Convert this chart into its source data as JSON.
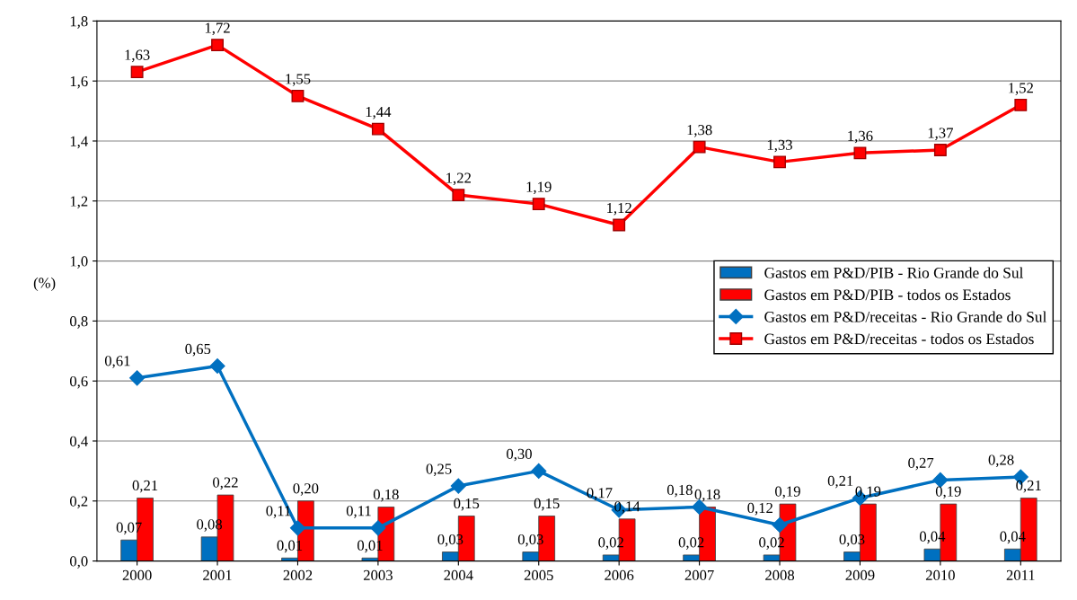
{
  "chart_data": {
    "type": "bar",
    "categories": [
      "2000",
      "2001",
      "2002",
      "2003",
      "2004",
      "2005",
      "2006",
      "2007",
      "2008",
      "2009",
      "2010",
      "2011"
    ],
    "ylabel": "(%)",
    "ylim": [
      0,
      1.8
    ],
    "yticks": [
      {
        "value": 0,
        "label": "0,0"
      },
      {
        "value": 0.2,
        "label": "0,2"
      },
      {
        "value": 0.4,
        "label": "0,4"
      },
      {
        "value": 0.6,
        "label": "0,6"
      },
      {
        "value": 0.8,
        "label": "0,8"
      },
      {
        "value": 1.0,
        "label": "1,0"
      },
      {
        "value": 1.2,
        "label": "1,2"
      },
      {
        "value": 1.4,
        "label": "1,4"
      },
      {
        "value": 1.6,
        "label": "1,6"
      },
      {
        "value": 1.8,
        "label": "1,8"
      }
    ],
    "grid": "y",
    "legend": "right",
    "series": [
      {
        "name": "Gastos em P&D/PIB - Rio Grande do Sul",
        "color": "#0070c0",
        "values": [
          0.07,
          0.08,
          0.01,
          0.01,
          0.03,
          0.03,
          0.02,
          0.02,
          0.02,
          0.03,
          0.04,
          0.04
        ],
        "value_labels": [
          "0,07",
          "0,08",
          "0,01",
          "0,01",
          "0,03",
          "0,03",
          "0,02",
          "0,02",
          "0,02",
          "0,03",
          "0,04",
          "0,04"
        ]
      },
      {
        "name": "Gastos em P&D/PIB - todos os Estados",
        "color": "#ff0000",
        "values": [
          0.21,
          0.22,
          0.2,
          0.18,
          0.15,
          0.15,
          0.14,
          0.18,
          0.19,
          0.19,
          0.19,
          0.21
        ],
        "value_labels": [
          "0,21",
          "0,22",
          "0,20",
          "0,18",
          "0,15",
          "0,15",
          "0,14",
          "0,18",
          "0,19",
          "0,19",
          "0,19",
          "0,21"
        ]
      },
      {
        "name": "Gastos em P&D/receitas - Rio Grande do Sul",
        "type": "line",
        "marker": "diamond",
        "color": "#0070c0",
        "values": [
          0.61,
          0.65,
          0.11,
          0.11,
          0.25,
          0.3,
          0.17,
          0.18,
          0.12,
          0.21,
          0.27,
          0.28
        ],
        "value_labels": [
          "0,61",
          "0,65",
          "0,11",
          "0,11",
          "0,25",
          "0,30",
          "0,17",
          "0,18",
          "0,12",
          "0,21",
          "0,27",
          "0,28"
        ]
      },
      {
        "name": "Gastos em P&D/receitas - todos os Estados",
        "type": "line",
        "marker": "square",
        "color": "#ff0000",
        "values": [
          1.63,
          1.72,
          1.55,
          1.44,
          1.22,
          1.19,
          1.12,
          1.38,
          1.33,
          1.36,
          1.37,
          1.52
        ],
        "value_labels": [
          "1,63",
          "1,72",
          "1,55",
          "1,44",
          "1,22",
          "1,19",
          "1,12",
          "1,38",
          "1,33",
          "1,36",
          "1,37",
          "1,52"
        ]
      }
    ]
  }
}
